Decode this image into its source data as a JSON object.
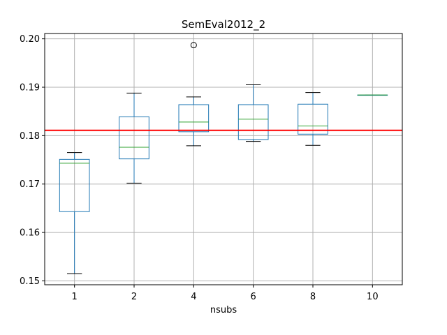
{
  "chart_data": {
    "type": "box",
    "title": "SemEval2012_2",
    "xlabel": "nsubs",
    "ylabel": "",
    "categories": [
      "1",
      "2",
      "4",
      "6",
      "8",
      "10"
    ],
    "ylim": [
      0.1492,
      0.2011
    ],
    "yticks": [
      0.15,
      0.16,
      0.17,
      0.18,
      0.19,
      0.2
    ],
    "ytick_labels": [
      "0.15",
      "0.16",
      "0.17",
      "0.18",
      "0.19",
      "0.20"
    ],
    "grid": true,
    "boxes": [
      {
        "category": "1",
        "whisker_low": 0.1515,
        "q1": 0.1643,
        "median": 0.1743,
        "q3": 0.1751,
        "whisker_high": 0.1765,
        "outliers": []
      },
      {
        "category": "2",
        "whisker_low": 0.1702,
        "q1": 0.1752,
        "median": 0.1776,
        "q3": 0.1839,
        "whisker_high": 0.1888,
        "outliers": []
      },
      {
        "category": "4",
        "whisker_low": 0.1779,
        "q1": 0.1808,
        "median": 0.1828,
        "q3": 0.1864,
        "whisker_high": 0.188,
        "outliers": [
          0.1987
        ]
      },
      {
        "category": "6",
        "whisker_low": 0.1788,
        "q1": 0.1792,
        "median": 0.1834,
        "q3": 0.1864,
        "whisker_high": 0.1905,
        "outliers": []
      },
      {
        "category": "8",
        "whisker_low": 0.178,
        "q1": 0.1803,
        "median": 0.182,
        "q3": 0.1865,
        "whisker_high": 0.1889,
        "outliers": []
      },
      {
        "category": "10",
        "whisker_low": 0.1884,
        "q1": 0.1884,
        "median": 0.1884,
        "q3": 0.1884,
        "whisker_high": 0.1884,
        "outliers": []
      }
    ],
    "reference_line": {
      "value": 0.1811,
      "color": "#ff0000"
    },
    "colors": {
      "box": "#1f77b4",
      "median": "#2ca02c",
      "whisker_cap": "#000000",
      "grid": "#b0b0b0",
      "outlier": "#000000"
    }
  }
}
